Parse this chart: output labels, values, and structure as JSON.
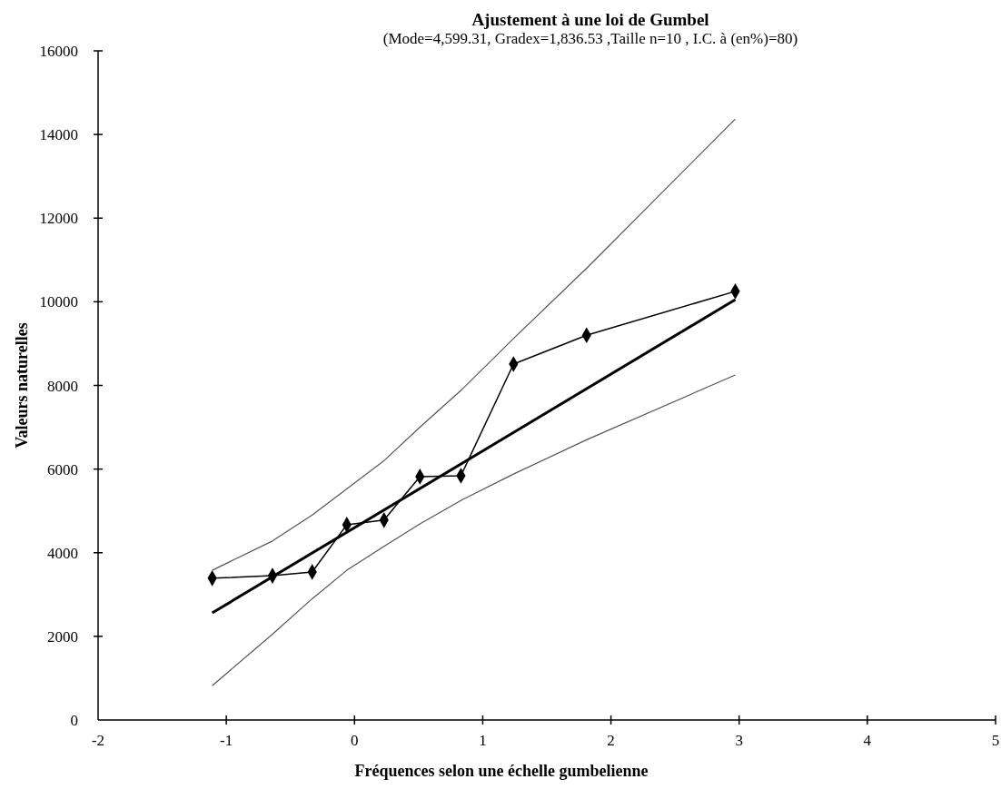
{
  "chart_data": {
    "type": "line",
    "title": "Ajustement à une loi de Gumbel",
    "subtitle": "(Mode=4,599.31, Gradex=1,836.53 ,Taille n=10 , I.C. à (en%)=80)",
    "xlabel": "Fréquences selon une échelle gumbelienne",
    "ylabel": "Valeurs naturelles",
    "xlim": [
      -2,
      5
    ],
    "xticks": [
      -2,
      -1,
      0,
      1,
      2,
      3,
      4,
      5
    ],
    "ylim": [
      0,
      16000
    ],
    "yticks": [
      0,
      2000,
      4000,
      6000,
      8000,
      10000,
      12000,
      14000,
      16000
    ],
    "grid": false,
    "series": [
      {
        "color": "#000000",
        "marker": "diamond",
        "x": [
          -1.11,
          -0.64,
          -0.33,
          -0.06,
          0.23,
          0.51,
          0.83,
          1.24,
          1.81,
          2.97
        ],
        "values": [
          3390,
          3450,
          3540,
          4670,
          4780,
          5820,
          5840,
          8510,
          9200,
          10250
        ]
      },
      {
        "color": "#000000",
        "marker": "none",
        "x": [
          -1.11,
          2.97
        ],
        "values": [
          2560,
          10050
        ]
      },
      {
        "color": "#555555",
        "marker": "none",
        "x": [
          -1.11,
          -0.64,
          -0.33,
          0.23,
          0.51,
          0.83,
          1.24,
          1.81,
          2.97
        ],
        "values": [
          3580,
          4280,
          4900,
          6200,
          7000,
          7880,
          9120,
          10800,
          14370
        ]
      },
      {
        "color": "#555555",
        "marker": "none",
        "x": [
          -1.11,
          -0.64,
          -0.33,
          -0.06,
          0.23,
          0.51,
          0.83,
          1.24,
          1.81,
          2.97
        ],
        "values": [
          820,
          2050,
          2900,
          3580,
          4150,
          4690,
          5250,
          5880,
          6700,
          8250
        ]
      }
    ]
  }
}
